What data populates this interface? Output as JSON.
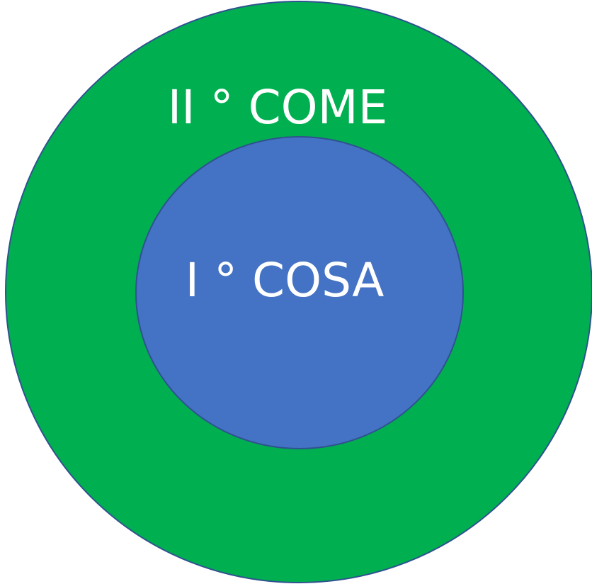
{
  "nodes": [
    {
      "label": "II ° COME"
    },
    {
      "label": "I ° COSA"
    }
  ]
}
